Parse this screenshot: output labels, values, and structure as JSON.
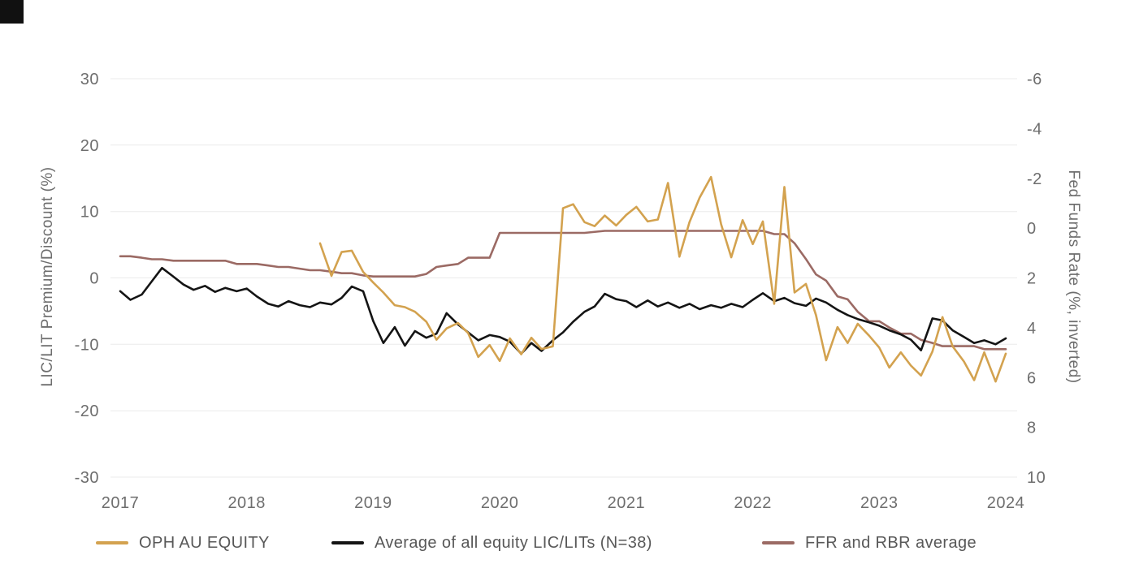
{
  "canvas": {
    "background": "#ffffff"
  },
  "brand": {
    "corner_square_color": "#111111"
  },
  "chart_data": {
    "type": "line",
    "title": "",
    "grid": "horizontal",
    "grid_color": "#ebebeb",
    "text_color": "#6e6e6e",
    "legend_position": "bottom",
    "x_axis": {
      "min": 2017,
      "max": 2024,
      "ticks": [
        "2017",
        "2018",
        "2019",
        "2020",
        "2021",
        "2022",
        "2023",
        "2024"
      ]
    },
    "left_axis": {
      "label": "LIC/LIT Premium/Discount (%)",
      "top_value": 30,
      "bottom_value": -30,
      "ticks": [
        30,
        20,
        10,
        0,
        -10,
        -20,
        -30
      ]
    },
    "right_axis": {
      "label": "Fed Funds Rate (%, inverted)",
      "inverted": true,
      "top_value": -6,
      "bottom_value": 10,
      "ticks": [
        -6,
        -4,
        -2,
        0,
        2,
        4,
        6,
        8,
        10
      ]
    },
    "series": [
      {
        "name": "OPH AU EQUITY",
        "color": "#d3a24f",
        "axis": "left",
        "points": [
          [
            2018.58,
            5.2
          ],
          [
            2018.67,
            0.3
          ],
          [
            2018.75,
            3.9
          ],
          [
            2018.83,
            4.1
          ],
          [
            2018.92,
            0.9
          ],
          [
            2019.0,
            -0.7
          ],
          [
            2019.08,
            -2.2
          ],
          [
            2019.17,
            -4.1
          ],
          [
            2019.25,
            -4.4
          ],
          [
            2019.33,
            -5.1
          ],
          [
            2019.42,
            -6.6
          ],
          [
            2019.5,
            -9.3
          ],
          [
            2019.58,
            -7.6
          ],
          [
            2019.67,
            -6.8
          ],
          [
            2019.75,
            -8.3
          ],
          [
            2019.83,
            -11.9
          ],
          [
            2019.92,
            -10.1
          ],
          [
            2020.0,
            -12.5
          ],
          [
            2020.08,
            -9.1
          ],
          [
            2020.17,
            -11.5
          ],
          [
            2020.25,
            -9.0
          ],
          [
            2020.33,
            -10.7
          ],
          [
            2020.42,
            -10.3
          ],
          [
            2020.5,
            10.5
          ],
          [
            2020.58,
            11.1
          ],
          [
            2020.67,
            8.4
          ],
          [
            2020.75,
            7.8
          ],
          [
            2020.83,
            9.4
          ],
          [
            2020.92,
            7.9
          ],
          [
            2021.0,
            9.5
          ],
          [
            2021.08,
            10.7
          ],
          [
            2021.17,
            8.5
          ],
          [
            2021.25,
            8.8
          ],
          [
            2021.33,
            14.3
          ],
          [
            2021.42,
            3.2
          ],
          [
            2021.5,
            8.4
          ],
          [
            2021.58,
            12.1
          ],
          [
            2021.67,
            15.2
          ],
          [
            2021.75,
            8.1
          ],
          [
            2021.83,
            3.1
          ],
          [
            2021.92,
            8.7
          ],
          [
            2022.0,
            5.1
          ],
          [
            2022.08,
            8.5
          ],
          [
            2022.17,
            -3.9
          ],
          [
            2022.25,
            13.7
          ],
          [
            2022.33,
            -2.2
          ],
          [
            2022.42,
            -0.9
          ],
          [
            2022.5,
            -5.6
          ],
          [
            2022.58,
            -12.4
          ],
          [
            2022.67,
            -7.4
          ],
          [
            2022.75,
            -9.8
          ],
          [
            2022.83,
            -6.9
          ],
          [
            2022.92,
            -8.7
          ],
          [
            2023.0,
            -10.5
          ],
          [
            2023.08,
            -13.5
          ],
          [
            2023.17,
            -11.2
          ],
          [
            2023.25,
            -13.2
          ],
          [
            2023.33,
            -14.7
          ],
          [
            2023.42,
            -11.1
          ],
          [
            2023.5,
            -5.9
          ],
          [
            2023.58,
            -10.3
          ],
          [
            2023.67,
            -12.6
          ],
          [
            2023.75,
            -15.4
          ],
          [
            2023.83,
            -11.2
          ],
          [
            2023.92,
            -15.6
          ],
          [
            2024.0,
            -11.4
          ]
        ]
      },
      {
        "name": "Average of all equity LIC/LITs (N=38)",
        "color": "#141414",
        "axis": "left",
        "points": [
          [
            2017.0,
            -2.0
          ],
          [
            2017.08,
            -3.3
          ],
          [
            2017.17,
            -2.5
          ],
          [
            2017.25,
            -0.5
          ],
          [
            2017.33,
            1.5
          ],
          [
            2017.42,
            0.2
          ],
          [
            2017.5,
            -1.0
          ],
          [
            2017.58,
            -1.8
          ],
          [
            2017.67,
            -1.2
          ],
          [
            2017.75,
            -2.1
          ],
          [
            2017.83,
            -1.5
          ],
          [
            2017.92,
            -2.0
          ],
          [
            2018.0,
            -1.6
          ],
          [
            2018.08,
            -2.8
          ],
          [
            2018.17,
            -3.9
          ],
          [
            2018.25,
            -4.3
          ],
          [
            2018.33,
            -3.5
          ],
          [
            2018.42,
            -4.1
          ],
          [
            2018.5,
            -4.4
          ],
          [
            2018.58,
            -3.7
          ],
          [
            2018.67,
            -4.0
          ],
          [
            2018.75,
            -3.0
          ],
          [
            2018.83,
            -1.3
          ],
          [
            2018.92,
            -2.0
          ],
          [
            2019.0,
            -6.5
          ],
          [
            2019.08,
            -9.8
          ],
          [
            2019.17,
            -7.4
          ],
          [
            2019.25,
            -10.2
          ],
          [
            2019.33,
            -8.0
          ],
          [
            2019.42,
            -9.0
          ],
          [
            2019.5,
            -8.4
          ],
          [
            2019.58,
            -5.3
          ],
          [
            2019.67,
            -7.0
          ],
          [
            2019.75,
            -8.2
          ],
          [
            2019.83,
            -9.4
          ],
          [
            2019.92,
            -8.6
          ],
          [
            2020.0,
            -8.9
          ],
          [
            2020.08,
            -9.6
          ],
          [
            2020.17,
            -11.4
          ],
          [
            2020.25,
            -9.8
          ],
          [
            2020.33,
            -11.0
          ],
          [
            2020.42,
            -9.4
          ],
          [
            2020.5,
            -8.2
          ],
          [
            2020.58,
            -6.6
          ],
          [
            2020.67,
            -5.1
          ],
          [
            2020.75,
            -4.3
          ],
          [
            2020.83,
            -2.4
          ],
          [
            2020.92,
            -3.2
          ],
          [
            2021.0,
            -3.5
          ],
          [
            2021.08,
            -4.4
          ],
          [
            2021.17,
            -3.4
          ],
          [
            2021.25,
            -4.3
          ],
          [
            2021.33,
            -3.7
          ],
          [
            2021.42,
            -4.5
          ],
          [
            2021.5,
            -3.9
          ],
          [
            2021.58,
            -4.7
          ],
          [
            2021.67,
            -4.1
          ],
          [
            2021.75,
            -4.5
          ],
          [
            2021.83,
            -3.9
          ],
          [
            2021.92,
            -4.4
          ],
          [
            2022.0,
            -3.3
          ],
          [
            2022.08,
            -2.3
          ],
          [
            2022.17,
            -3.5
          ],
          [
            2022.25,
            -3.0
          ],
          [
            2022.33,
            -3.8
          ],
          [
            2022.42,
            -4.2
          ],
          [
            2022.5,
            -3.1
          ],
          [
            2022.58,
            -3.7
          ],
          [
            2022.67,
            -4.8
          ],
          [
            2022.75,
            -5.6
          ],
          [
            2022.83,
            -6.2
          ],
          [
            2022.92,
            -6.7
          ],
          [
            2023.0,
            -7.2
          ],
          [
            2023.08,
            -7.9
          ],
          [
            2023.17,
            -8.5
          ],
          [
            2023.25,
            -9.3
          ],
          [
            2023.33,
            -10.9
          ],
          [
            2023.42,
            -6.1
          ],
          [
            2023.5,
            -6.4
          ],
          [
            2023.58,
            -7.9
          ],
          [
            2023.67,
            -8.9
          ],
          [
            2023.75,
            -9.8
          ],
          [
            2023.83,
            -9.4
          ],
          [
            2023.92,
            -10.0
          ],
          [
            2024.0,
            -9.1
          ]
        ]
      },
      {
        "name": "FFR and RBR average",
        "color": "#9b6a64",
        "axis": "right",
        "points": [
          [
            2017.0,
            1.13
          ],
          [
            2017.08,
            1.13
          ],
          [
            2017.17,
            1.19
          ],
          [
            2017.25,
            1.25
          ],
          [
            2017.33,
            1.25
          ],
          [
            2017.42,
            1.31
          ],
          [
            2017.5,
            1.31
          ],
          [
            2017.58,
            1.31
          ],
          [
            2017.67,
            1.31
          ],
          [
            2017.75,
            1.31
          ],
          [
            2017.83,
            1.31
          ],
          [
            2017.92,
            1.44
          ],
          [
            2018.0,
            1.44
          ],
          [
            2018.08,
            1.44
          ],
          [
            2018.17,
            1.5
          ],
          [
            2018.25,
            1.56
          ],
          [
            2018.33,
            1.56
          ],
          [
            2018.42,
            1.63
          ],
          [
            2018.5,
            1.69
          ],
          [
            2018.58,
            1.69
          ],
          [
            2018.67,
            1.75
          ],
          [
            2018.75,
            1.81
          ],
          [
            2018.83,
            1.81
          ],
          [
            2018.92,
            1.9
          ],
          [
            2019.0,
            1.94
          ],
          [
            2019.08,
            1.94
          ],
          [
            2019.17,
            1.94
          ],
          [
            2019.25,
            1.94
          ],
          [
            2019.33,
            1.94
          ],
          [
            2019.42,
            1.84
          ],
          [
            2019.5,
            1.56
          ],
          [
            2019.58,
            1.5
          ],
          [
            2019.67,
            1.44
          ],
          [
            2019.75,
            1.19
          ],
          [
            2019.83,
            1.19
          ],
          [
            2019.92,
            1.19
          ],
          [
            2020.0,
            0.19
          ],
          [
            2020.17,
            0.19
          ],
          [
            2020.33,
            0.19
          ],
          [
            2020.5,
            0.19
          ],
          [
            2020.67,
            0.19
          ],
          [
            2020.83,
            0.11
          ],
          [
            2020.92,
            0.11
          ],
          [
            2021.0,
            0.11
          ],
          [
            2021.25,
            0.11
          ],
          [
            2021.5,
            0.11
          ],
          [
            2021.75,
            0.11
          ],
          [
            2022.0,
            0.11
          ],
          [
            2022.08,
            0.11
          ],
          [
            2022.17,
            0.24
          ],
          [
            2022.25,
            0.24
          ],
          [
            2022.33,
            0.61
          ],
          [
            2022.42,
            1.24
          ],
          [
            2022.5,
            1.86
          ],
          [
            2022.58,
            2.11
          ],
          [
            2022.67,
            2.74
          ],
          [
            2022.75,
            2.86
          ],
          [
            2022.83,
            3.36
          ],
          [
            2022.92,
            3.74
          ],
          [
            2023.0,
            3.74
          ],
          [
            2023.08,
            3.99
          ],
          [
            2023.17,
            4.24
          ],
          [
            2023.25,
            4.24
          ],
          [
            2023.33,
            4.49
          ],
          [
            2023.42,
            4.61
          ],
          [
            2023.5,
            4.74
          ],
          [
            2023.58,
            4.74
          ],
          [
            2023.67,
            4.74
          ],
          [
            2023.75,
            4.74
          ],
          [
            2023.83,
            4.86
          ],
          [
            2023.92,
            4.86
          ],
          [
            2024.0,
            4.86
          ]
        ]
      }
    ]
  }
}
